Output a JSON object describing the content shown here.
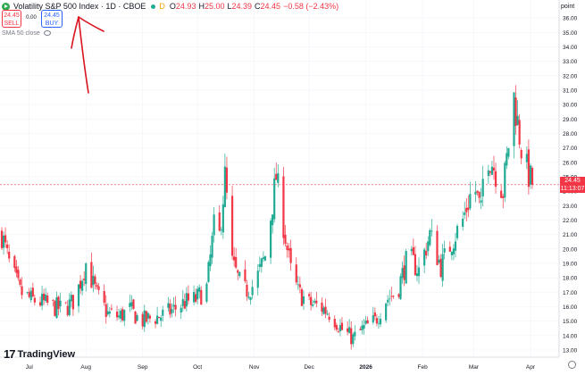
{
  "legend": {
    "title": "Volatility S&P 500 Index · 1D · CBOE",
    "source_badge": "D",
    "open_label": "O",
    "open": "24.93",
    "high_label": "H",
    "high": "25.00",
    "low_label": "L",
    "low": "24.39",
    "close_label": "C",
    "close": "24.45",
    "change": "−0.58 (−2.43%)"
  },
  "trade": {
    "sell_price": "24.45",
    "sell_label": "SELL",
    "spread": "0.00",
    "buy_price": "24.45",
    "buy_label": "BUY"
  },
  "indicator": {
    "label": "SMA 50 close"
  },
  "price_axis": {
    "title": "point",
    "ticks": [
      "36.00",
      "35.00",
      "34.00",
      "33.00",
      "32.00",
      "31.00",
      "30.00",
      "29.00",
      "28.00",
      "27.00",
      "26.00",
      "25.00",
      "24.00",
      "23.00",
      "22.00",
      "21.00",
      "20.00",
      "19.00",
      "18.00",
      "17.00",
      "16.00",
      "15.00",
      "14.00",
      "13.00"
    ]
  },
  "last_price": {
    "value": "24.45",
    "countdown": "11:13:07"
  },
  "time_axis": {
    "ticks": [
      "Jul",
      "Aug",
      "Sep",
      "Oct",
      "Nov",
      "Dec",
      "2026",
      "Feb",
      "Mar",
      "Apr"
    ]
  },
  "brand": {
    "name": "TradingView",
    "mark": "17"
  },
  "colors": {
    "up": "#22ab94",
    "down": "#f23645",
    "annotation": "#d9141e"
  },
  "icons": {
    "settings": "gear-icon",
    "visibility": "eye-icon"
  },
  "chart_data": {
    "type": "candlestick",
    "ylim": [
      13,
      36.5
    ],
    "x_range": [
      "2025-06-16",
      "2026-04-02"
    ],
    "x": [
      "06-16",
      "06-20",
      "06-26",
      "07-02",
      "07-08",
      "07-14",
      "07-20",
      "07-26",
      "08-01",
      "08-07",
      "08-13",
      "08-19",
      "08-25",
      "08-31",
      "09-06",
      "09-12",
      "09-18",
      "09-24",
      "09-30",
      "10-06",
      "10-10",
      "10-12",
      "10-16",
      "10-20",
      "10-26",
      "11-01",
      "11-07",
      "11-13",
      "11-19",
      "11-21",
      "11-25",
      "12-01",
      "12-07",
      "12-13",
      "12-19",
      "12-25",
      "12-31",
      "01-06",
      "01-12",
      "01-18",
      "01-24",
      "01-30",
      "02-05",
      "02-11",
      "02-17",
      "02-23",
      "03-01",
      "03-05",
      "03-07",
      "03-11",
      "03-17",
      "03-23",
      "03-27",
      "03-30",
      "04-02"
    ],
    "close": [
      21.0,
      19.0,
      17.0,
      16.5,
      16.3,
      16.0,
      15.8,
      16.5,
      19.0,
      16.8,
      15.5,
      15.3,
      15.8,
      15.0,
      15.2,
      15.4,
      15.8,
      16.3,
      16.5,
      17.3,
      21.5,
      19.5,
      25.0,
      19.0,
      17.0,
      17.5,
      19.5,
      25.0,
      20.0,
      18.5,
      17.0,
      16.2,
      16.0,
      15.5,
      14.4,
      13.8,
      14.5,
      15.0,
      16.5,
      17.0,
      19.5,
      18.5,
      21.0,
      18.8,
      20.5,
      22.0,
      24.5,
      22.5,
      27.0,
      26.0,
      24.0,
      30.5,
      27.0,
      25.5,
      24.45
    ]
  }
}
